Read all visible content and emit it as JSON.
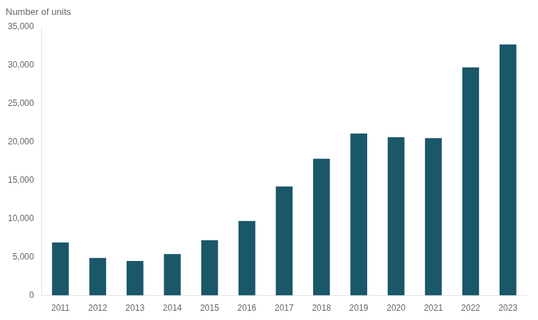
{
  "chart_data": {
    "type": "bar",
    "ylabel": "Number of units",
    "categories": [
      "2011",
      "2012",
      "2013",
      "2014",
      "2015",
      "2016",
      "2017",
      "2018",
      "2019",
      "2020",
      "2021",
      "2022",
      "2023"
    ],
    "values": [
      6900,
      4900,
      4500,
      5400,
      7200,
      9700,
      14200,
      17800,
      21100,
      20600,
      20500,
      29700,
      32700
    ],
    "color": "#1a5769",
    "ylim": [
      0,
      35000
    ],
    "yticks": [
      0,
      {
        "value": 5000,
        "label": "5,000"
      },
      {
        "value": 10000,
        "label": "10,000"
      },
      {
        "value": 15000,
        "label": "15,000"
      },
      {
        "value": 20000,
        "label": "20,000"
      },
      {
        "value": 25000,
        "label": "25,000"
      },
      {
        "value": 30000,
        "label": "30,000"
      },
      {
        "value": 35000,
        "label": "35,000"
      }
    ],
    "grid": false
  }
}
